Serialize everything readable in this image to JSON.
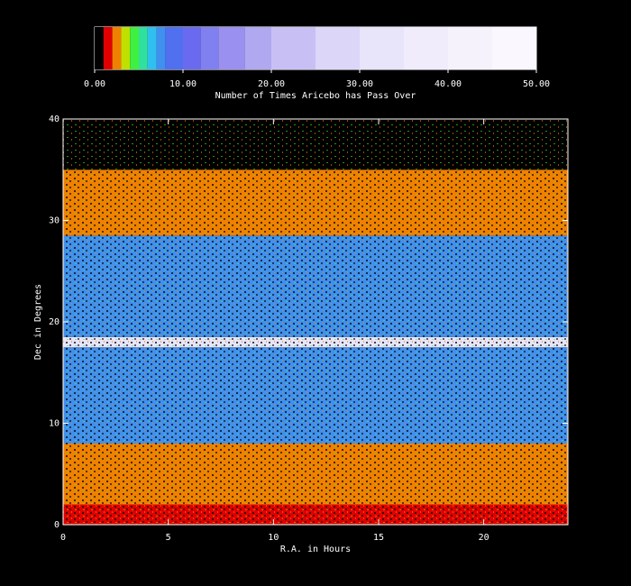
{
  "chart_data": {
    "type": "heatmap",
    "colorbar_label": "Number of Times Aricebo has Pass Over",
    "clim": [
      0,
      50
    ],
    "cticks": [
      {
        "value": 0,
        "label": "0.00"
      },
      {
        "value": 10,
        "label": "10.00"
      },
      {
        "value": 20,
        "label": "20.00"
      },
      {
        "value": 30,
        "label": "30.00"
      },
      {
        "value": 40,
        "label": "40.00"
      },
      {
        "value": 50,
        "label": "50.00"
      }
    ],
    "colorscale": [
      {
        "value": 0,
        "color": "#000000"
      },
      {
        "value": 1,
        "color": "#e00000"
      },
      {
        "value": 2,
        "color": "#f08000"
      },
      {
        "value": 3,
        "color": "#c0e000"
      },
      {
        "value": 4,
        "color": "#40f040"
      },
      {
        "value": 5,
        "color": "#30e0a0"
      },
      {
        "value": 6,
        "color": "#30c0f0"
      },
      {
        "value": 7,
        "color": "#4090f0"
      },
      {
        "value": 8,
        "color": "#5070f0"
      },
      {
        "value": 10,
        "color": "#6a6af0"
      },
      {
        "value": 12,
        "color": "#8080f0"
      },
      {
        "value": 14,
        "color": "#9a90f0"
      },
      {
        "value": 17,
        "color": "#b0a8f0"
      },
      {
        "value": 20,
        "color": "#c8c0f4"
      },
      {
        "value": 25,
        "color": "#dcd6f8"
      },
      {
        "value": 30,
        "color": "#e8e4fa"
      },
      {
        "value": 35,
        "color": "#f0ecfc"
      },
      {
        "value": 40,
        "color": "#f6f2fc"
      },
      {
        "value": 45,
        "color": "#faf8fe"
      }
    ],
    "xlabel": "R.A. in Hours",
    "ylabel": "Dec in Degrees",
    "xlim": [
      0,
      24
    ],
    "xticks": [
      0,
      5,
      10,
      15,
      20
    ],
    "ylim": [
      0,
      40
    ],
    "yticks": [
      0,
      10,
      20,
      30,
      40
    ],
    "dec_bins": [
      0,
      2,
      8,
      17.5,
      18.5,
      28.5,
      35,
      40
    ],
    "values": [
      1,
      2,
      7,
      30,
      7,
      2,
      0.5
    ]
  }
}
